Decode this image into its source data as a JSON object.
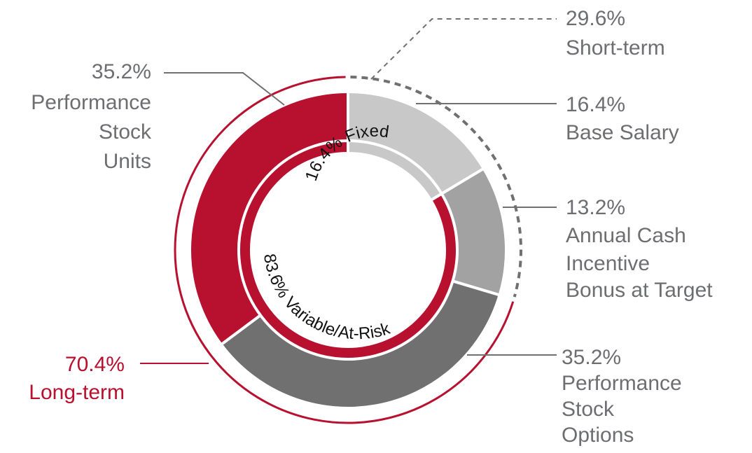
{
  "colors": {
    "red": "#b8102f",
    "light_gray": "#c8c8c8",
    "mid_gray": "#a2a2a2",
    "dark_gray": "#707070",
    "label_gray": "#6d6e71"
  },
  "chart_data": {
    "type": "donut",
    "outer_ring": {
      "series": [
        {
          "name": "Base Salary",
          "value": 16.4,
          "value_label": "16.4%",
          "label_lines": [
            "Base Salary"
          ],
          "color": "#c8c8c8"
        },
        {
          "name": "Annual Cash Incentive Bonus at Target",
          "value": 13.2,
          "value_label": "13.2%",
          "label_lines": [
            "Annual Cash",
            "Incentive",
            "Bonus at Target"
          ],
          "color": "#a2a2a2"
        },
        {
          "name": "Performance Stock Options",
          "value": 35.2,
          "value_label": "35.2%",
          "label_lines": [
            "Performance",
            "Stock",
            "Options"
          ],
          "color": "#707070"
        },
        {
          "name": "Performance Stock Units",
          "value": 35.2,
          "value_label": "35.2%",
          "label_lines": [
            "Performance",
            "Stock",
            "Units"
          ],
          "color": "#b8102f"
        }
      ]
    },
    "inner_ring": {
      "series": [
        {
          "name": "Fixed",
          "value": 16.4,
          "label": "16.4% Fixed",
          "color": "#c8c8c8"
        },
        {
          "name": "Variable/At-Risk",
          "value": 83.6,
          "label": "83.6% Variable/At-Risk",
          "color": "#b8102f"
        }
      ]
    },
    "brackets": [
      {
        "name": "Short-term",
        "value": 29.6,
        "value_label": "29.6%",
        "label": "Short-term",
        "style": "dashed",
        "color": "#707070"
      },
      {
        "name": "Long-term",
        "value": 70.4,
        "value_label": "70.4%",
        "label": "Long-term",
        "style": "solid",
        "color": "#b8102f"
      }
    ]
  }
}
